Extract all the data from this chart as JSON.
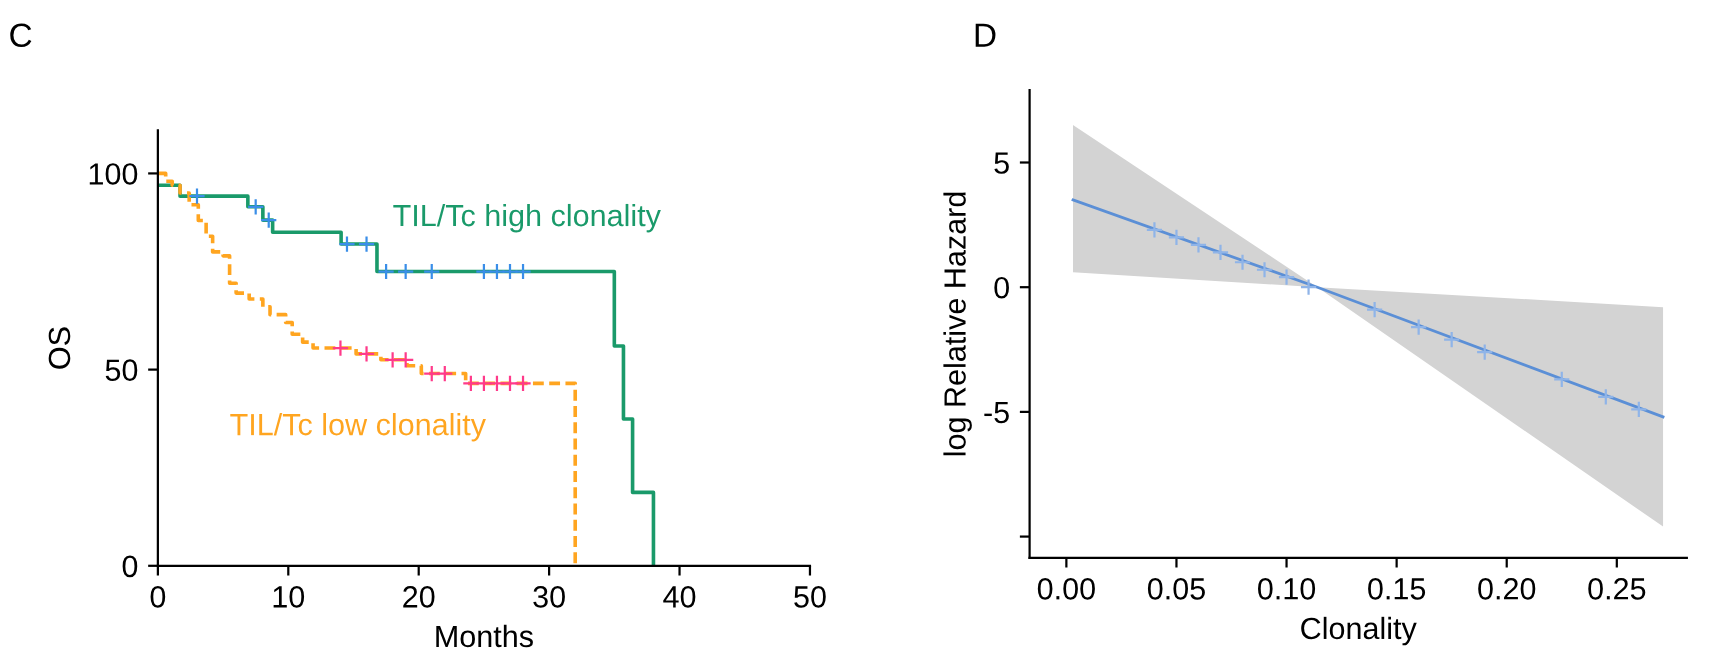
{
  "chart_data": [
    {
      "type": "step",
      "title": "C",
      "xlabel": "Months",
      "ylabel": "OS",
      "xlim": [
        0,
        50
      ],
      "xticks": [
        0,
        10,
        20,
        30,
        40,
        50
      ],
      "ylim": [
        0,
        111
      ],
      "yticks": [
        0,
        50,
        100
      ],
      "grid": false,
      "legend": false,
      "series": [
        {
          "name": "TIL/Tc high clonality",
          "color": "#1a9a6a",
          "line_style": "solid",
          "x": [
            0,
            1.7,
            6.9,
            8.05,
            8.8,
            14.05,
            16.8,
            35,
            35.7,
            36.4,
            38
          ],
          "values": [
            97,
            94.2,
            91.5,
            88.1,
            85,
            82,
            75,
            56,
            37.4,
            18.7,
            0
          ]
        },
        {
          "name": "TIL/Tc low clonality",
          "color": "#ffa520",
          "line_style": "dashed",
          "x": [
            0,
            0.6,
            1.1,
            1.7,
            2.4,
            3.1,
            3.7,
            4.2,
            5,
            5.5,
            6,
            7,
            8.05,
            8.6,
            9.8,
            10.3,
            11.1,
            11.9,
            15.2,
            17.1,
            19.1,
            20.2,
            23.6,
            32
          ],
          "values": [
            100,
            98,
            97,
            95,
            92,
            88,
            84,
            80,
            79,
            72,
            69.5,
            68,
            66,
            64,
            62,
            59,
            57,
            55.5,
            54,
            52.5,
            51,
            49,
            46.5,
            0
          ]
        },
        {
          "type": "scatter",
          "color": "#3a8ee8",
          "marker": "cross",
          "x": [
            3,
            7.5,
            8.5,
            14.5,
            16,
            17.5,
            19,
            21,
            25,
            26,
            27,
            28
          ],
          "values": [
            94.2,
            91.5,
            88.1,
            82,
            82,
            75,
            75,
            75,
            75,
            75,
            75,
            75
          ]
        },
        {
          "type": "scatter",
          "color": "#ff3a8a",
          "marker": "cross",
          "x": [
            14,
            16,
            18,
            19,
            21,
            22,
            24,
            25,
            26,
            27,
            28
          ],
          "values": [
            55.5,
            54,
            52.5,
            52.5,
            49,
            49,
            46.5,
            46.5,
            46.5,
            46.5,
            46.5
          ]
        }
      ]
    },
    {
      "type": "line",
      "title": "D",
      "xlabel": "Clonality",
      "ylabel": "log Relative Hazard",
      "xlim": [
        -0.0167,
        0.2818
      ],
      "xticks": [
        {
          "value": 0,
          "label": "0.00"
        },
        0.05,
        {
          "value": 0.1,
          "label": "0.10"
        },
        0.15,
        {
          "value": 0.2,
          "label": "0.20"
        },
        0.25
      ],
      "ylim": [
        -10.85,
        7.9
      ],
      "yticks": [
        5,
        0,
        -5,
        {
          "value": -10,
          "label": null
        }
      ],
      "grid": false,
      "legend": false,
      "series": [
        {
          "color": "#5b8fd6",
          "line_style": "solid",
          "x": [
            0.003,
            0.114,
            0.271
          ],
          "values": [
            3.5,
            0,
            -5.2
          ],
          "lower": [
            0.6,
            0,
            -9.6
          ],
          "upper": [
            6.5,
            0,
            -0.8
          ]
        },
        {
          "type": "scatter",
          "color": "#8fb4e8",
          "marker": "cross",
          "x": [
            0.04,
            0.05,
            0.06,
            0.07,
            0.08,
            0.09,
            0.1,
            0.11,
            0.14,
            0.16,
            0.175,
            0.19,
            0.225,
            0.245,
            0.26
          ],
          "values": [
            2.3,
            2.0,
            1.7,
            1.4,
            1.0,
            0.7,
            0.4,
            0.0,
            -0.9,
            -1.6,
            -2.1,
            -2.6,
            -3.7,
            -4.4,
            -4.9
          ]
        }
      ]
    }
  ]
}
